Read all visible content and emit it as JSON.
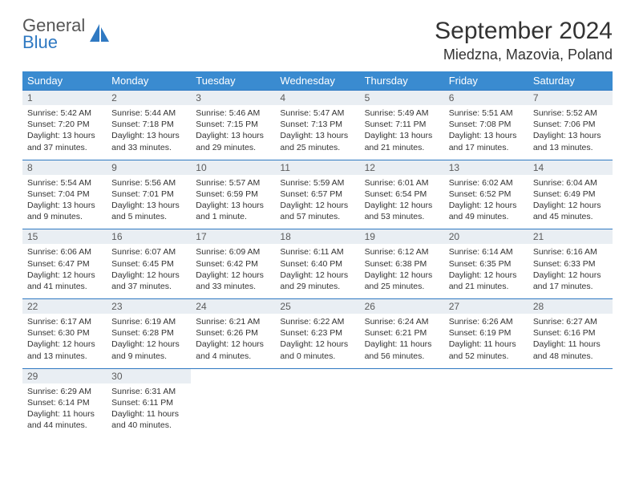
{
  "brand": {
    "line1": "General",
    "line2": "Blue"
  },
  "title": "September 2024",
  "location": "Miedzna, Mazovia, Poland",
  "colors": {
    "header_bg": "#3a8bd0",
    "header_text": "#ffffff",
    "daynum_bg": "#e9eef3",
    "row_divider": "#2f79c2",
    "brand_gray": "#555555",
    "brand_blue": "#2f79c2"
  },
  "weekdays": [
    "Sunday",
    "Monday",
    "Tuesday",
    "Wednesday",
    "Thursday",
    "Friday",
    "Saturday"
  ],
  "days": [
    {
      "n": 1,
      "sunrise": "5:42 AM",
      "sunset": "7:20 PM",
      "daylight": "13 hours and 37 minutes."
    },
    {
      "n": 2,
      "sunrise": "5:44 AM",
      "sunset": "7:18 PM",
      "daylight": "13 hours and 33 minutes."
    },
    {
      "n": 3,
      "sunrise": "5:46 AM",
      "sunset": "7:15 PM",
      "daylight": "13 hours and 29 minutes."
    },
    {
      "n": 4,
      "sunrise": "5:47 AM",
      "sunset": "7:13 PM",
      "daylight": "13 hours and 25 minutes."
    },
    {
      "n": 5,
      "sunrise": "5:49 AM",
      "sunset": "7:11 PM",
      "daylight": "13 hours and 21 minutes."
    },
    {
      "n": 6,
      "sunrise": "5:51 AM",
      "sunset": "7:08 PM",
      "daylight": "13 hours and 17 minutes."
    },
    {
      "n": 7,
      "sunrise": "5:52 AM",
      "sunset": "7:06 PM",
      "daylight": "13 hours and 13 minutes."
    },
    {
      "n": 8,
      "sunrise": "5:54 AM",
      "sunset": "7:04 PM",
      "daylight": "13 hours and 9 minutes."
    },
    {
      "n": 9,
      "sunrise": "5:56 AM",
      "sunset": "7:01 PM",
      "daylight": "13 hours and 5 minutes."
    },
    {
      "n": 10,
      "sunrise": "5:57 AM",
      "sunset": "6:59 PM",
      "daylight": "13 hours and 1 minute."
    },
    {
      "n": 11,
      "sunrise": "5:59 AM",
      "sunset": "6:57 PM",
      "daylight": "12 hours and 57 minutes."
    },
    {
      "n": 12,
      "sunrise": "6:01 AM",
      "sunset": "6:54 PM",
      "daylight": "12 hours and 53 minutes."
    },
    {
      "n": 13,
      "sunrise": "6:02 AM",
      "sunset": "6:52 PM",
      "daylight": "12 hours and 49 minutes."
    },
    {
      "n": 14,
      "sunrise": "6:04 AM",
      "sunset": "6:49 PM",
      "daylight": "12 hours and 45 minutes."
    },
    {
      "n": 15,
      "sunrise": "6:06 AM",
      "sunset": "6:47 PM",
      "daylight": "12 hours and 41 minutes."
    },
    {
      "n": 16,
      "sunrise": "6:07 AM",
      "sunset": "6:45 PM",
      "daylight": "12 hours and 37 minutes."
    },
    {
      "n": 17,
      "sunrise": "6:09 AM",
      "sunset": "6:42 PM",
      "daylight": "12 hours and 33 minutes."
    },
    {
      "n": 18,
      "sunrise": "6:11 AM",
      "sunset": "6:40 PM",
      "daylight": "12 hours and 29 minutes."
    },
    {
      "n": 19,
      "sunrise": "6:12 AM",
      "sunset": "6:38 PM",
      "daylight": "12 hours and 25 minutes."
    },
    {
      "n": 20,
      "sunrise": "6:14 AM",
      "sunset": "6:35 PM",
      "daylight": "12 hours and 21 minutes."
    },
    {
      "n": 21,
      "sunrise": "6:16 AM",
      "sunset": "6:33 PM",
      "daylight": "12 hours and 17 minutes."
    },
    {
      "n": 22,
      "sunrise": "6:17 AM",
      "sunset": "6:30 PM",
      "daylight": "12 hours and 13 minutes."
    },
    {
      "n": 23,
      "sunrise": "6:19 AM",
      "sunset": "6:28 PM",
      "daylight": "12 hours and 9 minutes."
    },
    {
      "n": 24,
      "sunrise": "6:21 AM",
      "sunset": "6:26 PM",
      "daylight": "12 hours and 4 minutes."
    },
    {
      "n": 25,
      "sunrise": "6:22 AM",
      "sunset": "6:23 PM",
      "daylight": "12 hours and 0 minutes."
    },
    {
      "n": 26,
      "sunrise": "6:24 AM",
      "sunset": "6:21 PM",
      "daylight": "11 hours and 56 minutes."
    },
    {
      "n": 27,
      "sunrise": "6:26 AM",
      "sunset": "6:19 PM",
      "daylight": "11 hours and 52 minutes."
    },
    {
      "n": 28,
      "sunrise": "6:27 AM",
      "sunset": "6:16 PM",
      "daylight": "11 hours and 48 minutes."
    },
    {
      "n": 29,
      "sunrise": "6:29 AM",
      "sunset": "6:14 PM",
      "daylight": "11 hours and 44 minutes."
    },
    {
      "n": 30,
      "sunrise": "6:31 AM",
      "sunset": "6:11 PM",
      "daylight": "11 hours and 40 minutes."
    }
  ],
  "labels": {
    "sunrise": "Sunrise: ",
    "sunset": "Sunset: ",
    "daylight": "Daylight: "
  },
  "start_weekday_index": 0,
  "typography": {
    "title_fontsize": 30,
    "location_fontsize": 18,
    "header_fontsize": 13,
    "body_fontsize": 10.5
  }
}
